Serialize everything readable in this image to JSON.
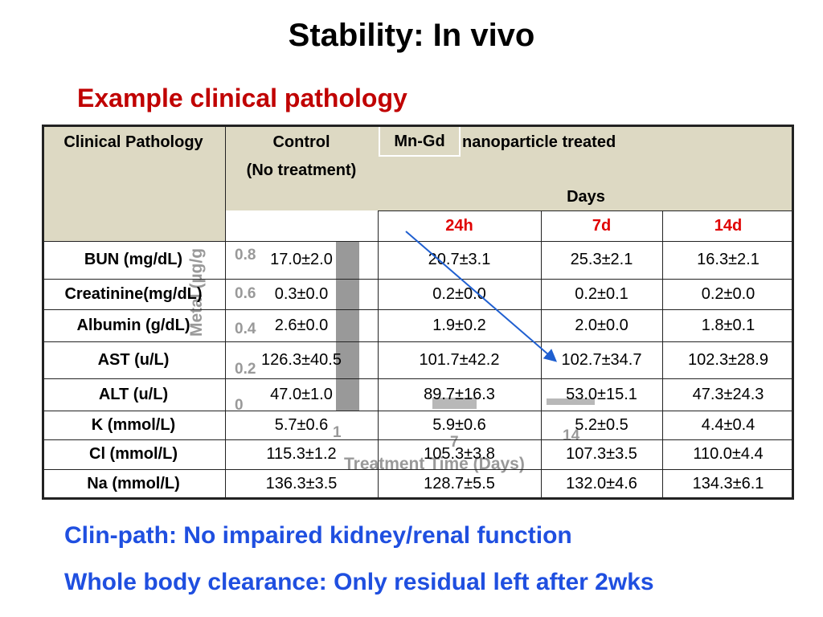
{
  "title": "Stability: In vivo",
  "subtitle": "Example clinical pathology",
  "table": {
    "header": {
      "first": "Clinical Pathology",
      "control": [
        "Control",
        "(No treatment)"
      ],
      "treated_prefix": "Mn-Gd",
      "treated": "nanoparticle treated",
      "days": "Days",
      "day_columns": [
        "24h",
        "7d",
        "14d"
      ]
    },
    "rows": [
      [
        "BUN (mg/dL)",
        "17.0±2.0",
        "20.7±3.1",
        "25.3±2.1",
        "16.3±2.1"
      ],
      [
        "Creatinine(mg/dL)",
        "0.3±0.0",
        "0.2±0.0",
        "0.2±0.1",
        "0.2±0.0"
      ],
      [
        "Albumin (g/dL)",
        "2.6±0.0",
        "1.9±0.2",
        "2.0±0.0",
        "1.8±0.1"
      ],
      [
        "AST (u/L)",
        "126.3±40.5",
        "101.7±42.2",
        "102.7±34.7",
        "102.3±28.9"
      ],
      [
        "ALT (u/L)",
        "47.0±1.0",
        "89.7±16.3",
        "53.0±15.1",
        "47.3±24.3"
      ],
      [
        "K (mmol/L)",
        "5.7±0.6",
        "5.9±0.6",
        "5.2±0.5",
        "4.4±0.4"
      ],
      [
        "Cl (mmol/L)",
        "115.3±1.2",
        "105.3±3.8",
        "107.3±3.5",
        "110.0±4.4"
      ],
      [
        "Na (mmol/L)",
        "136.3±3.5",
        "128.7±5.5",
        "132.0±4.6",
        "134.3±6.1"
      ]
    ]
  },
  "background_chart": {
    "y_label": "Metal (µg/g",
    "yticks": [
      "0.8",
      "0.6",
      "0.4",
      "0.2",
      "0"
    ],
    "xticks": [
      "1",
      "7",
      "14"
    ],
    "x_label": "Treatment Time (Days)"
  },
  "bullets": [
    "Clin-path: No impaired kidney/renal function",
    "Whole body clearance: Only residual left after 2wks"
  ]
}
